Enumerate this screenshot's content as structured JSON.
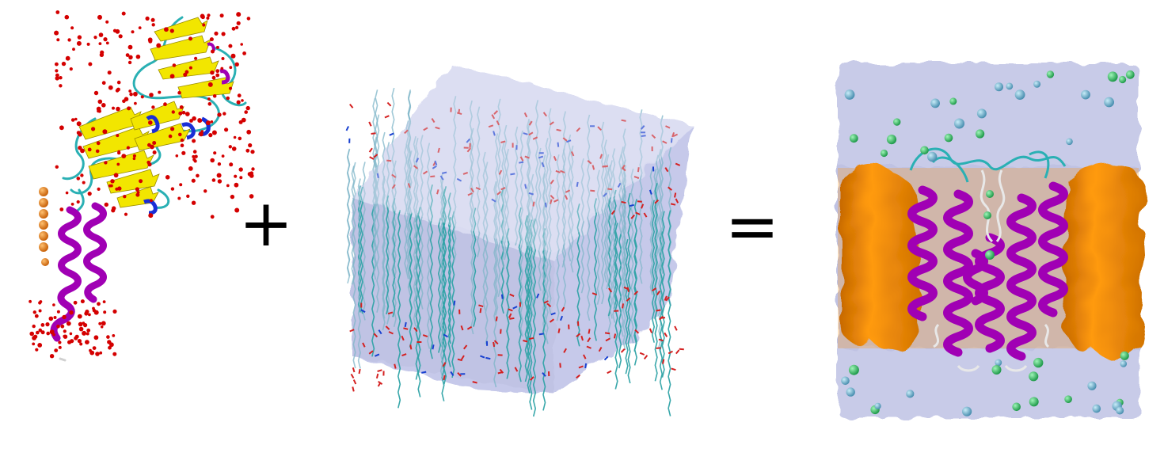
{
  "operators": {
    "plus": "+",
    "equals": "="
  },
  "panels": [
    {
      "name": "protein-structure",
      "colors": {
        "beta-sheet": "#f2e600",
        "helix": "#a000b4",
        "coil": "#2ab0b4",
        "waters": "#d40000",
        "ions": "#e8840a",
        "turn": "#1a2fd6"
      }
    },
    {
      "name": "lipid-bilayer-box",
      "colors": {
        "solvent": "#c6c9ea",
        "lipid-tails": "#33a5a8",
        "oxygen": "#d42020",
        "nitrogen": "#1840d0"
      }
    },
    {
      "name": "embedded-system",
      "colors": {
        "solvent": "#c8cbe8",
        "membrane": "#f28a00",
        "helix": "#a000b4",
        "ions": "#39c066",
        "ions-alt": "#66aec8"
      }
    }
  ]
}
